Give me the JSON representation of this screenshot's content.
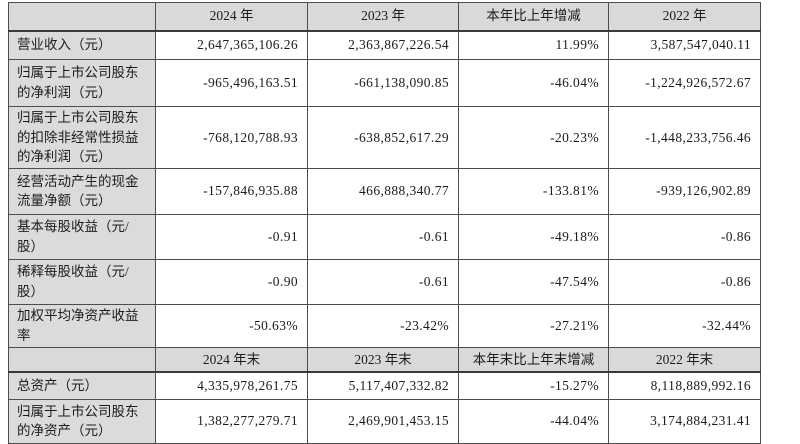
{
  "colors": {
    "header_bg": "#d9d9d9",
    "label_bg": "#dbdbdb",
    "border": "#4d4d4d",
    "text": "#1c1c1c",
    "page_bg": "#ffffff"
  },
  "table": {
    "name": "financial-summary-table",
    "rows": [
      {
        "type": "header",
        "cells": [
          "",
          "2024 年",
          "2023 年",
          "本年比上年增减",
          "2022 年"
        ]
      },
      {
        "type": "data",
        "cells": [
          "营业收入（元）",
          "2,647,365,106.26",
          "2,363,867,226.54",
          "11.99%",
          "3,587,547,040.11"
        ]
      },
      {
        "type": "data",
        "cells": [
          "归属于上市公司股东的净利润（元）",
          "-965,496,163.51",
          "-661,138,090.85",
          "-46.04%",
          "-1,224,926,572.67"
        ]
      },
      {
        "type": "data",
        "cells": [
          "归属于上市公司股东的扣除非经常性损益的净利润（元）",
          "-768,120,788.93",
          "-638,852,617.29",
          "-20.23%",
          "-1,448,233,756.46"
        ]
      },
      {
        "type": "data",
        "cells": [
          "经营活动产生的现金流量净额（元）",
          "-157,846,935.88",
          "466,888,340.77",
          "-133.81%",
          "-939,126,902.89"
        ]
      },
      {
        "type": "data",
        "cells": [
          "基本每股收益（元/股）",
          "-0.91",
          "-0.61",
          "-49.18%",
          "-0.86"
        ]
      },
      {
        "type": "data",
        "cells": [
          "稀释每股收益（元/股）",
          "-0.90",
          "-0.61",
          "-47.54%",
          "-0.86"
        ]
      },
      {
        "type": "data",
        "cells": [
          "加权平均净资产收益率",
          "-50.63%",
          "-23.42%",
          "-27.21%",
          "-32.44%"
        ]
      },
      {
        "type": "header",
        "cells": [
          "",
          "2024 年末",
          "2023 年末",
          "本年末比上年末增减",
          "2022 年末"
        ]
      },
      {
        "type": "data",
        "cells": [
          "总资产（元）",
          "4,335,978,261.75",
          "5,117,407,332.82",
          "-15.27%",
          "8,118,889,992.16"
        ]
      },
      {
        "type": "data",
        "cells": [
          "归属于上市公司股东的净资产（元）",
          "1,382,277,279.71",
          "2,469,901,453.15",
          "-44.04%",
          "3,174,884,231.41"
        ]
      }
    ]
  }
}
